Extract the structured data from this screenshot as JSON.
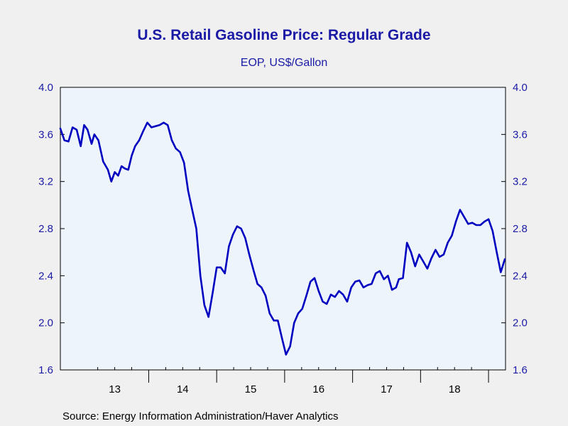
{
  "chart_data": {
    "type": "line",
    "title": "U.S. Retail Gasoline Price: Regular Grade",
    "subtitle": "EOP, US$/Gallon",
    "xlabel": "",
    "ylabel": "",
    "source": "Source:  Energy Information Administration/Haver Analytics",
    "ylim": [
      1.6,
      4.0
    ],
    "yticks": [
      "1.6",
      "2.0",
      "2.4",
      "2.8",
      "3.2",
      "3.6",
      "4.0"
    ],
    "xlim": [
      2012.7,
      2019.25
    ],
    "xticks": [
      {
        "label": "13",
        "at": 2013.5
      },
      {
        "label": "14",
        "at": 2014.5
      },
      {
        "label": "15",
        "at": 2015.5
      },
      {
        "label": "16",
        "at": 2016.5
      },
      {
        "label": "17",
        "at": 2017.5
      },
      {
        "label": "18",
        "at": 2018.5
      }
    ],
    "year_boundaries": [
      2014,
      2015,
      2016,
      2017,
      2018,
      2019
    ],
    "grid": false,
    "line_color": "#0000c0",
    "series": [
      {
        "x": [
          2012.7,
          2012.76,
          2012.82,
          2012.88,
          2012.94,
          2013.0,
          2013.05,
          2013.1,
          2013.16,
          2013.2,
          2013.26,
          2013.33,
          2013.4,
          2013.45,
          2013.5,
          2013.55,
          2013.6,
          2013.65,
          2013.7,
          2013.75,
          2013.8,
          2013.86,
          2013.92,
          2013.98,
          2014.04,
          2014.1,
          2014.16,
          2014.22,
          2014.28,
          2014.34,
          2014.4,
          2014.46,
          2014.52,
          2014.58,
          2014.64,
          2014.7,
          2014.76,
          2014.82,
          2014.88,
          2014.94,
          2015.0,
          2015.06,
          2015.12,
          2015.18,
          2015.24,
          2015.3,
          2015.36,
          2015.42,
          2015.48,
          2015.54,
          2015.6,
          2015.66,
          2015.72,
          2015.78,
          2015.84,
          2015.9,
          2015.96,
          2016.02,
          2016.08,
          2016.14,
          2016.2,
          2016.26,
          2016.32,
          2016.38,
          2016.44,
          2016.5,
          2016.56,
          2016.62,
          2016.68,
          2016.74,
          2016.8,
          2016.86,
          2016.92,
          2016.98,
          2017.04,
          2017.1,
          2017.16,
          2017.22,
          2017.28,
          2017.34,
          2017.4,
          2017.46,
          2017.52,
          2017.58,
          2017.64,
          2017.68,
          2017.74,
          2017.8,
          2017.86,
          2017.92,
          2017.98,
          2018.04,
          2018.1,
          2018.16,
          2018.22,
          2018.28,
          2018.34,
          2018.4,
          2018.46,
          2018.52,
          2018.58,
          2018.64,
          2018.7,
          2018.76,
          2018.82,
          2018.88,
          2018.94,
          2019.0,
          2019.06,
          2019.12,
          2019.18,
          2019.24
        ],
        "values": [
          3.65,
          3.55,
          3.54,
          3.66,
          3.64,
          3.5,
          3.68,
          3.64,
          3.52,
          3.6,
          3.55,
          3.37,
          3.3,
          3.2,
          3.28,
          3.25,
          3.33,
          3.31,
          3.3,
          3.42,
          3.5,
          3.55,
          3.63,
          3.7,
          3.66,
          3.67,
          3.68,
          3.7,
          3.68,
          3.55,
          3.48,
          3.45,
          3.36,
          3.12,
          2.96,
          2.8,
          2.4,
          2.15,
          2.05,
          2.25,
          2.47,
          2.47,
          2.42,
          2.65,
          2.75,
          2.82,
          2.8,
          2.72,
          2.58,
          2.45,
          2.33,
          2.3,
          2.23,
          2.08,
          2.02,
          2.02,
          1.87,
          1.73,
          1.8,
          2.0,
          2.08,
          2.12,
          2.23,
          2.35,
          2.38,
          2.27,
          2.18,
          2.16,
          2.24,
          2.22,
          2.27,
          2.24,
          2.18,
          2.3,
          2.35,
          2.36,
          2.3,
          2.32,
          2.33,
          2.42,
          2.44,
          2.37,
          2.4,
          2.28,
          2.3,
          2.37,
          2.38,
          2.68,
          2.6,
          2.48,
          2.58,
          2.52,
          2.46,
          2.55,
          2.62,
          2.56,
          2.58,
          2.68,
          2.74,
          2.86,
          2.96,
          2.9,
          2.84,
          2.85,
          2.83,
          2.83,
          2.86,
          2.88,
          2.78,
          2.6,
          2.43,
          2.54
        ]
      }
    ]
  }
}
